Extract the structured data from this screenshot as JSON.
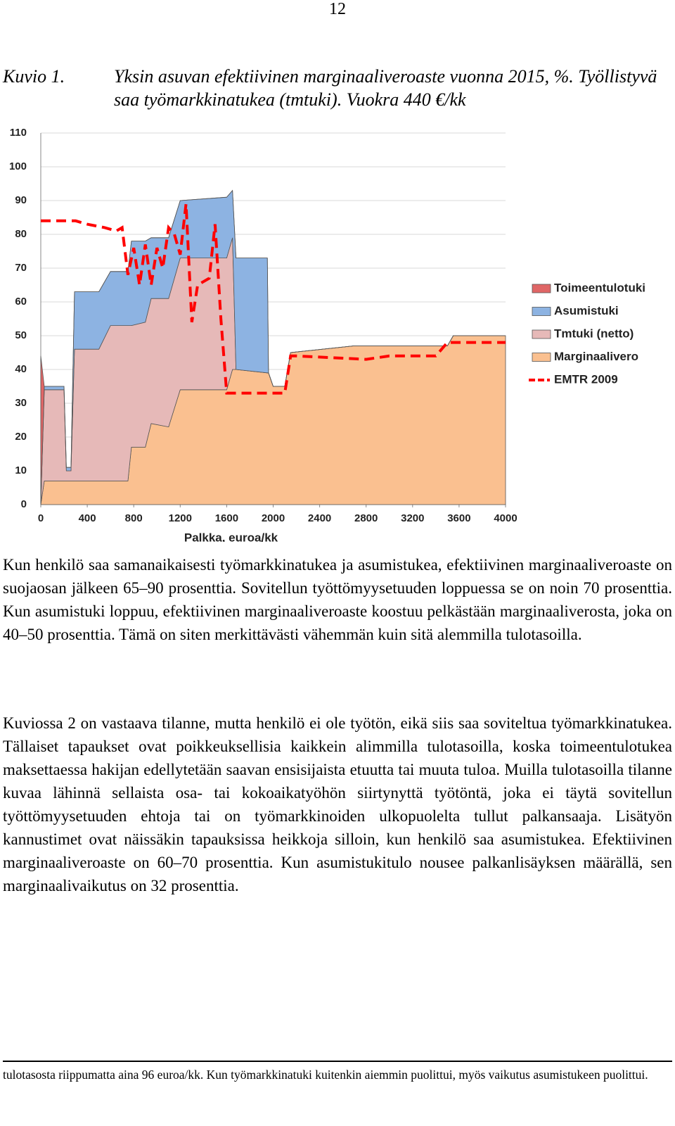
{
  "page_number": "12",
  "caption": {
    "label": "Kuvio 1.",
    "text": "Yksin asuvan efektiivinen marginaaliveroaste vuonna 2015, %. Työllistyvä saa työmarkkinatukea (tmtuki). Vuokra 440 €/kk"
  },
  "chart_data": {
    "type": "stacked-area",
    "xlabel": "Palkka, euroa/kk",
    "x": [
      0,
      30,
      200,
      220,
      260,
      290,
      500,
      600,
      750,
      780,
      900,
      950,
      1100,
      1200,
      1600,
      1650,
      1680,
      1950,
      1960,
      2000,
      2100,
      2150,
      2700,
      3500,
      3550,
      4000
    ],
    "series": [
      {
        "name": "Toimeentulotuki",
        "color": "#e06666",
        "values": [
          44,
          0,
          0,
          0,
          0,
          0,
          0,
          0,
          0,
          0,
          0,
          0,
          0,
          0,
          0,
          0,
          0,
          0,
          0,
          0,
          0,
          0,
          0,
          0,
          0,
          0
        ]
      },
      {
        "name": "Asumistuki",
        "color": "#8db3e2",
        "values": [
          0,
          1,
          1,
          1,
          1,
          17,
          17,
          16,
          16,
          25,
          24,
          18,
          18,
          17,
          18,
          14,
          33,
          34,
          0,
          0,
          0,
          0,
          0,
          0,
          0,
          0
        ]
      },
      {
        "name": "Tmtuki (netto)",
        "color": "#e6b9b8",
        "values": [
          0,
          27,
          27,
          3,
          3,
          39,
          39,
          46,
          46,
          36,
          37,
          37,
          38,
          39,
          39,
          39,
          0,
          0,
          0,
          0,
          0,
          0,
          0,
          0,
          0,
          0
        ]
      },
      {
        "name": "Marginaalivero",
        "color": "#fac090",
        "values": [
          0,
          7,
          7,
          7,
          7,
          7,
          7,
          7,
          7,
          17,
          17,
          24,
          23,
          34,
          34,
          40,
          40,
          39,
          39,
          35,
          35,
          45,
          47,
          47,
          50,
          50
        ]
      },
      {
        "name": "EMTR 2009",
        "type": "line",
        "color": "#ff0000",
        "x": [
          0,
          300,
          400,
          550,
          650,
          700,
          750,
          800,
          850,
          900,
          950,
          1000,
          1050,
          1100,
          1150,
          1200,
          1250,
          1300,
          1350,
          1450,
          1500,
          1550,
          1600,
          2100,
          2150,
          2200,
          2800,
          3000,
          3400,
          3500,
          3700,
          4000
        ],
        "values": [
          84,
          84,
          83,
          82,
          81,
          82,
          68,
          76,
          65,
          77,
          65,
          76,
          70,
          82,
          80,
          74,
          89,
          54,
          65,
          67,
          83,
          55,
          33,
          33,
          44,
          44,
          43,
          44,
          44,
          48,
          48,
          48
        ]
      }
    ],
    "xlim": [
      0,
      4000
    ],
    "xticks": [
      0,
      400,
      800,
      1200,
      1600,
      2000,
      2400,
      2800,
      3200,
      3600,
      4000
    ],
    "ylim": [
      0,
      110
    ],
    "yticks": [
      0,
      10,
      20,
      30,
      40,
      50,
      60,
      70,
      80,
      90,
      100,
      110
    ],
    "grid": true,
    "legend": "right"
  },
  "paragraphs": [
    "Kun henkilö saa samanaikaisesti työmarkkinatukea ja asumistukea, efektiivinen marginaaliveroaste on suojaosan jälkeen 65–90 prosenttia. Sovitellun työttömyysetuuden loppuessa se on noin 70 prosenttia. Kun asumistuki loppuu, efektiivinen marginaaliveroaste koostuu pelkästään marginaaliverosta, joka on 40–50 prosenttia. Tämä on siten merkittävästi vähemmän kuin sitä alemmilla tulotasoilla.",
    "Kuviossa 2 on vastaava tilanne, mutta henkilö ei ole työtön, eikä siis saa soviteltua työmarkkinatukea. Tällaiset tapaukset ovat poikkeuksellisia kaikkein alimmilla tulotasoilla, koska toimeentulotukea maksettaessa hakijan edellytetään saavan ensisijaista etuutta tai muuta tuloa. Muilla tulotasoilla tilanne kuvaa lähinnä sellaista osa- tai kokoaikatyöhön siirtynyttä työtöntä, joka ei täytä sovitellun työttömyysetuuden ehtoja tai on työmarkkinoiden ulkopuolelta tullut palkansaaja. Lisätyön kannustimet ovat näissäkin tapauksissa heikkoja silloin, kun henkilö saa asumistukea. Efektiivinen marginaaliveroaste on 60–70 prosenttia. Kun asumistukitulo nousee palkanlisäyksen määrällä, sen marginaalivaikutus on 32 prosenttia."
  ],
  "footnote": "tulotasosta riippumatta aina 96 euroa/kk. Kun työmarkkinatuki kuitenkin aiemmin puolittui, myös vaikutus asumistukeen puolittui."
}
